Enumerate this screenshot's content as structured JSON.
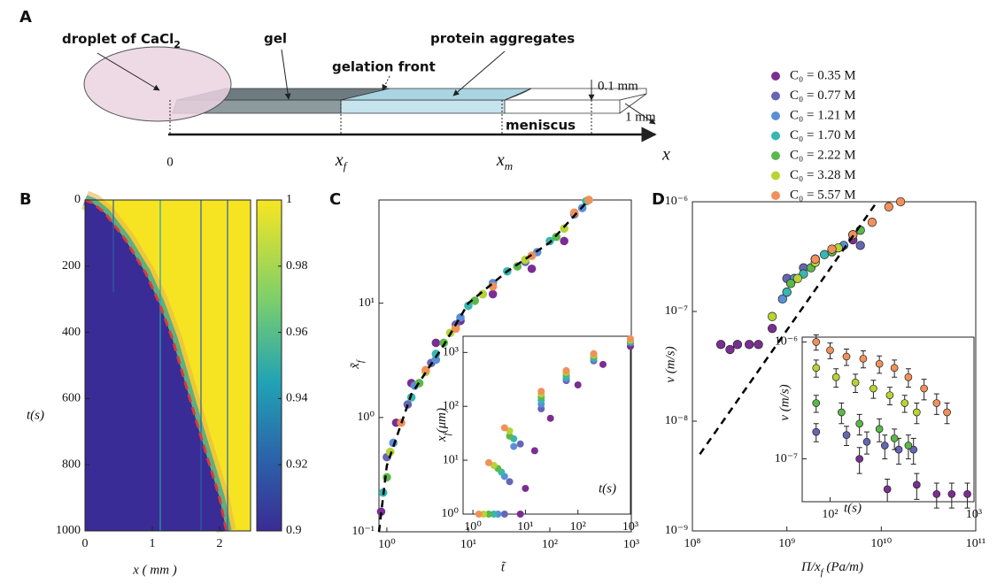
{
  "panels": [
    "A",
    "B",
    "C",
    "D"
  ],
  "diagram": {
    "droplet": {
      "main": "droplet of CaCl",
      "sub": "2"
    },
    "gel": "gel",
    "gelation_front": "gelation front",
    "protein_aggregates": "protein aggregates",
    "thickness": "0.1 mm",
    "width": "1 mm",
    "meniscus": "meniscus",
    "origin": "0",
    "x_f": {
      "main": "x",
      "sub": "f"
    },
    "x_m": {
      "main": "x",
      "sub": "m"
    },
    "x": "x"
  },
  "chart_data": [
    {
      "type": "heatmap",
      "xlabel": "x   ( mm )",
      "ylabel": "t(s)",
      "xlim": [
        0,
        2.46
      ],
      "xticks": [
        0,
        1,
        2
      ],
      "ylim": [
        0,
        1000
      ],
      "y_inverted": true,
      "yticks": [
        0,
        200,
        400,
        600,
        800,
        1000
      ],
      "colorbar": {
        "clim": [
          0.9,
          1
        ],
        "ticks": [
          0.9,
          0.92,
          0.94,
          0.96,
          0.98,
          1
        ]
      },
      "front": {
        "color": "#d93a3a",
        "x": [
          0,
          0.12,
          0.3,
          0.6,
          0.9,
          1.1,
          1.3,
          1.5,
          1.7,
          1.85,
          2.0,
          2.1
        ],
        "y": [
          0,
          10,
          40,
          120,
          220,
          310,
          420,
          560,
          700,
          800,
          900,
          1000
        ]
      }
    },
    {
      "type": "scatter",
      "xscale": "log",
      "yscale": "log",
      "xlabel": "t̃",
      "ylabel": {
        "main": "x̃",
        "sub": "f"
      },
      "xlim": [
        0.8,
        1000
      ],
      "xticks": [
        {
          "value": 1,
          "label": "10⁰"
        },
        {
          "value": 10,
          "label": "10¹"
        },
        {
          "value": 100,
          "label": "10²"
        },
        {
          "value": 1000,
          "label": "10³"
        }
      ],
      "ylim": [
        0.1,
        80
      ],
      "yticks": [
        {
          "value": 0.1,
          "label": "10⁻¹"
        },
        {
          "value": 1,
          "label": "10⁰"
        },
        {
          "value": 10,
          "label": "10¹"
        }
      ],
      "fit": {
        "color": "#000000",
        "x": [
          0.8,
          1,
          2,
          5,
          10,
          30,
          100,
          300
        ],
        "y": [
          0.1,
          0.38,
          1.6,
          4.3,
          10,
          19,
          34,
          80
        ]
      },
      "series": [
        {
          "name": "C₀ = 0.35 M",
          "color": "#7a2e91",
          "x": [
            0.85,
            1.3,
            2,
            4,
            8,
            20,
            60,
            150
          ],
          "values": [
            0.15,
            0.9,
            2,
            4.5,
            7,
            12,
            20,
            35
          ]
        },
        {
          "name": "C₀ = 0.77 M",
          "color": "#6566b3",
          "x": [
            1,
            1.8,
            3.5,
            7,
            15,
            50,
            200
          ],
          "values": [
            0.45,
            1.3,
            3,
            6.5,
            12,
            23,
            60
          ]
        },
        {
          "name": "C₀ = 1.21 M",
          "color": "#5a8fd6",
          "x": [
            1.2,
            2.2,
            4,
            8,
            20,
            70,
            250
          ],
          "values": [
            0.6,
            1.9,
            3.2,
            7.5,
            15,
            28,
            68
          ]
        },
        {
          "name": "C₀ = 1.70 M",
          "color": "#37b7b0",
          "x": [
            0.9,
            2,
            4,
            10,
            30,
            100,
            280
          ],
          "values": [
            0.22,
            1.5,
            3.6,
            9.5,
            19,
            35,
            78
          ]
        },
        {
          "name": "C₀ = 2.22 M",
          "color": "#5bb84a",
          "x": [
            1,
            2.5,
            5,
            12,
            40,
            120,
            300
          ],
          "values": [
            0.3,
            2,
            4.5,
            10.5,
            21,
            38,
            80
          ]
        },
        {
          "name": "C₀ = 3.28 M",
          "color": "#b7d334",
          "x": [
            1.1,
            3,
            6,
            15,
            50,
            150,
            300
          ],
          "values": [
            0.5,
            2.5,
            5.5,
            12,
            24,
            45,
            80
          ]
        },
        {
          "name": "C₀ = 5.57 M",
          "color": "#f0905a",
          "x": [
            1.5,
            3,
            7,
            20,
            60,
            200,
            300
          ],
          "values": [
            0.9,
            2.6,
            6,
            14,
            26,
            62,
            80
          ]
        }
      ]
    },
    {
      "type": "scatter",
      "inset": true,
      "xscale": "log",
      "yscale": "log",
      "xlabel": "t(s)",
      "ylabel": {
        "main": "x",
        "sub": "f",
        "rest": "(μm)"
      },
      "xlim": [
        0.65,
        1000
      ],
      "xticks": [
        {
          "value": 1,
          "label": "10⁰"
        },
        {
          "value": 10,
          "label": "10¹"
        },
        {
          "value": 100,
          "label": "10²"
        },
        {
          "value": 1000,
          "label": "10³"
        }
      ],
      "ylim": [
        1,
        2000
      ],
      "yticks": [
        {
          "value": 1,
          "label": "10⁰"
        },
        {
          "value": 10,
          "label": "10¹"
        },
        {
          "value": 100,
          "label": "10²"
        },
        {
          "value": 1000,
          "label": "10³"
        }
      ],
      "series": [
        {
          "name": "C₀ = 0.35 M",
          "color": "#7a2e91",
          "x": [
            8,
            10,
            15,
            30,
            100,
            300,
            1000
          ],
          "values": [
            1,
            3,
            15,
            60,
            250,
            600,
            1300
          ]
        },
        {
          "name": "C₀ = 0.77 M",
          "color": "#6566b3",
          "x": [
            4,
            5,
            8,
            20,
            60,
            200,
            1000
          ],
          "values": [
            1,
            4,
            20,
            90,
            300,
            700,
            1500
          ]
        },
        {
          "name": "C₀ = 1.21 M",
          "color": "#5a8fd6",
          "x": [
            3,
            4,
            6,
            20,
            60,
            200,
            1000
          ],
          "values": [
            1,
            5,
            18,
            110,
            330,
            750,
            1550
          ]
        },
        {
          "name": "C₀ = 1.70 M",
          "color": "#37b7b0",
          "x": [
            2.5,
            3.5,
            6,
            20,
            60,
            200,
            1000
          ],
          "values": [
            1,
            6,
            25,
            130,
            360,
            800,
            1600
          ]
        },
        {
          "name": "C₀ = 2.22 M",
          "color": "#5bb84a",
          "x": [
            2,
            3,
            5,
            20,
            60,
            200,
            1000
          ],
          "values": [
            1,
            7,
            28,
            150,
            400,
            850,
            1650
          ]
        },
        {
          "name": "C₀ = 3.28 M",
          "color": "#b7d334",
          "x": [
            1.6,
            2.5,
            5,
            20,
            60,
            200,
            1000
          ],
          "values": [
            1,
            8,
            35,
            170,
            430,
            900,
            1700
          ]
        },
        {
          "name": "C₀ = 5.57 M",
          "color": "#f0905a",
          "x": [
            1.3,
            2,
            4,
            20,
            60,
            200,
            1000
          ],
          "values": [
            1,
            9,
            40,
            190,
            460,
            950,
            1800
          ]
        }
      ]
    },
    {
      "type": "scatter",
      "xscale": "log",
      "yscale": "log",
      "xlabel": {
        "main": "Π/x",
        "sub": "f",
        "rest": " (Pa/m)"
      },
      "ylabel": "v (m/s)",
      "xlim": [
        100000000.0,
        100000000000.0
      ],
      "xticks": [
        {
          "value": 100000000.0,
          "label": "10⁸"
        },
        {
          "value": 1000000000.0,
          "label": "10⁹"
        },
        {
          "value": 10000000000.0,
          "label": "10¹⁰"
        },
        {
          "value": 100000000000.0,
          "label": "10¹¹"
        }
      ],
      "ylim": [
        1e-09,
        1e-06
      ],
      "yticks": [
        {
          "value": 1e-09,
          "label": "10⁻⁹"
        },
        {
          "value": 1e-08,
          "label": "10⁻⁸"
        },
        {
          "value": 1e-07,
          "label": "10⁻⁷"
        },
        {
          "value": 1e-06,
          "label": "10⁻⁶"
        }
      ],
      "fit": {
        "color": "#000000",
        "x": [
          120000000.0,
          9000000000.0
        ],
        "y": [
          5e-09,
          1e-06
        ]
      },
      "series": [
        {
          "name": "C₀ = 0.35 M",
          "color": "#7a2e91",
          "x": [
            200000000.0,
            250000000.0,
            300000000.0,
            400000000.0,
            500000000.0,
            700000000.0,
            1000000000.0,
            2000000000.0,
            5000000000.0
          ],
          "values": [
            5e-08,
            4.5e-08,
            5e-08,
            5e-08,
            5e-08,
            7e-08,
            1.5e-07,
            3e-07,
            4.5e-07
          ]
        },
        {
          "name": "C₀ = 0.77 M",
          "color": "#6566b3",
          "x": [
            1000000000.0,
            1500000000.0,
            3000000000.0,
            6000000000.0
          ],
          "values": [
            2e-07,
            2.5e-07,
            3.5e-07,
            4e-07
          ]
        },
        {
          "name": "C₀ = 1.21 M",
          "color": "#5a8fd6",
          "x": [
            900000000.0,
            1200000000.0,
            2000000000.0,
            4000000000.0
          ],
          "values": [
            1.3e-07,
            2e-07,
            3e-07,
            4e-07
          ]
        },
        {
          "name": "C₀ = 1.70 M",
          "color": "#37b7b0",
          "x": [
            1000000000.0,
            1500000000.0,
            2500000000.0,
            5000000000.0
          ],
          "values": [
            1.5e-07,
            2.2e-07,
            3.3e-07,
            5e-07
          ]
        },
        {
          "name": "C₀ = 2.22 M",
          "color": "#5bb84a",
          "x": [
            1100000000.0,
            1800000000.0,
            3000000000.0,
            6000000000.0
          ],
          "values": [
            1.8e-07,
            2.5e-07,
            3.5e-07,
            5.5e-07
          ]
        },
        {
          "name": "C₀ = 3.28 M",
          "color": "#b7d334",
          "x": [
            700000000.0,
            1300000000.0,
            2000000000.0,
            3500000000.0
          ],
          "values": [
            9e-08,
            2e-07,
            2.8e-07,
            3.8e-07
          ]
        },
        {
          "name": "C₀ = 5.57 M",
          "color": "#f0905a",
          "x": [
            2000000000.0,
            3000000000.0,
            5000000000.0,
            8000000000.0,
            12000000000.0,
            16000000000.0
          ],
          "values": [
            3e-07,
            3.7e-07,
            5e-07,
            6.5e-07,
            9e-07,
            1e-06
          ]
        }
      ]
    },
    {
      "type": "errorbar",
      "inset": true,
      "xscale": "log",
      "yscale": "log",
      "xlabel": "t(s)",
      "ylabel": "v (m/s)",
      "xlim": [
        64,
        1000
      ],
      "xticks": [
        {
          "value": 100,
          "label": "10²"
        },
        {
          "value": 1000,
          "label": "10³"
        }
      ],
      "ylim": [
        4.3e-08,
        1.1e-06
      ],
      "yticks": [
        {
          "value": 1e-07,
          "label": "10⁻⁷"
        },
        {
          "value": 1e-06,
          "label": "10⁻⁶"
        }
      ],
      "series": [
        {
          "name": "C₀ = 0.35 M",
          "color": "#7a2e91",
          "x": [
            160,
            250,
            400,
            550,
            700,
            900
          ],
          "values": [
            1e-07,
            5.5e-08,
            6e-08,
            5e-08,
            5e-08,
            5e-08
          ],
          "errors": [
            2.5e-08,
            1.2e-08,
            1.5e-08,
            1.2e-08,
            1.2e-08,
            1.2e-08
          ]
        },
        {
          "name": "C₀ = 0.77 M",
          "color": "#6566b3",
          "x": [
            80,
            130,
            180,
            240,
            300,
            380
          ],
          "values": [
            1.7e-07,
            1.6e-07,
            1.4e-07,
            1.3e-07,
            1.2e-07,
            1.2e-07
          ],
          "errors": [
            3e-08,
            3e-08,
            3e-08,
            3e-08,
            3e-08,
            3e-08
          ]
        },
        {
          "name": "C₀ = 2.22 M",
          "color": "#5bb84a",
          "x": [
            80,
            120,
            160,
            220,
            280,
            350
          ],
          "values": [
            3e-07,
            2.5e-07,
            2e-07,
            1.8e-07,
            1.5e-07,
            1.3e-07
          ],
          "errors": [
            5e-08,
            5e-08,
            4e-08,
            4e-08,
            3e-08,
            3e-08
          ]
        },
        {
          "name": "C₀ = 3.28 M",
          "color": "#b7d334",
          "x": [
            80,
            110,
            150,
            200,
            260,
            330,
            400
          ],
          "values": [
            6e-07,
            5e-07,
            4.5e-07,
            4e-07,
            3.5e-07,
            3e-07,
            2.5e-07
          ],
          "errors": [
            1e-07,
            9e-08,
            8e-08,
            7e-08,
            6e-08,
            5e-08,
            5e-08
          ]
        },
        {
          "name": "C₀ = 5.57 M",
          "color": "#f0905a",
          "x": [
            80,
            100,
            130,
            170,
            220,
            280,
            350,
            450,
            550,
            650
          ],
          "values": [
            1e-06,
            8.5e-07,
            7.5e-07,
            7.2e-07,
            6.5e-07,
            6e-07,
            5e-07,
            4e-07,
            3e-07,
            2.5e-07
          ],
          "errors": [
            1.5e-07,
            1.3e-07,
            1.2e-07,
            1.2e-07,
            1.1e-07,
            1e-07,
            9e-08,
            8e-08,
            6e-08,
            5e-08
          ]
        }
      ]
    }
  ]
}
